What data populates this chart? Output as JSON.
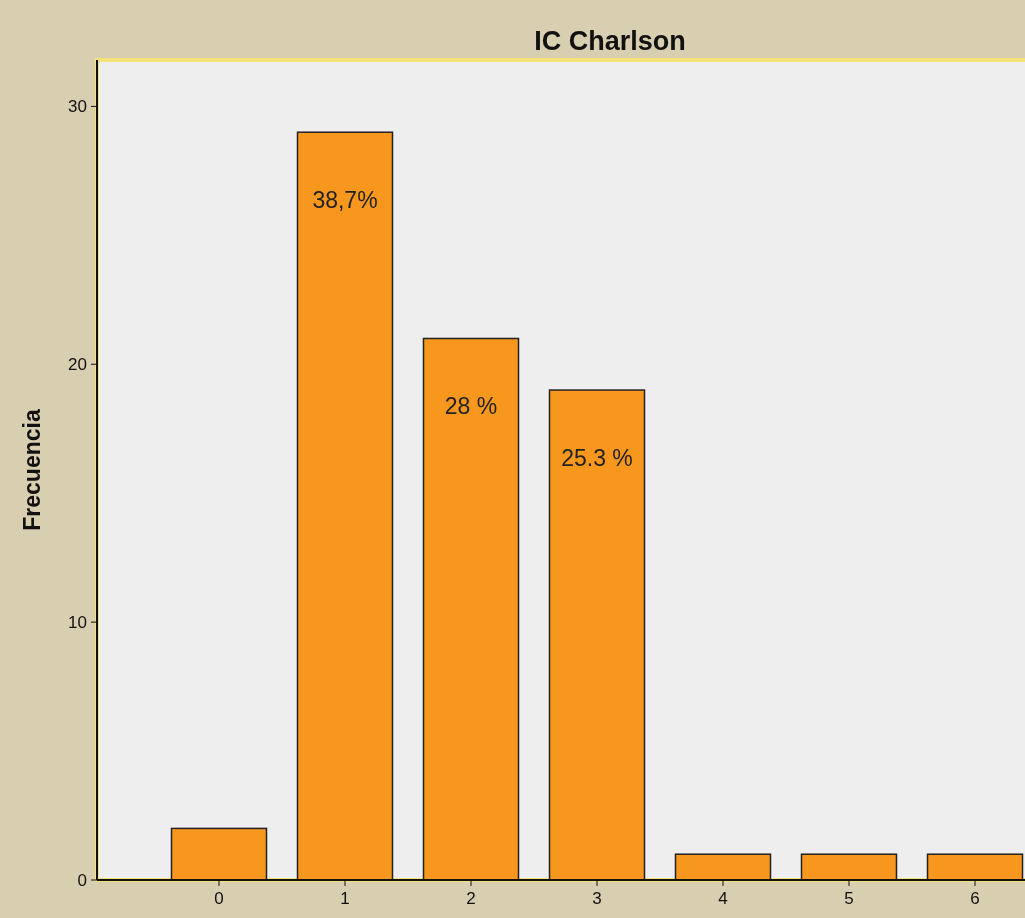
{
  "chart_data": {
    "type": "bar",
    "title": "IC Charlson",
    "ylabel": "Frecuencia",
    "categories": [
      "0",
      "1",
      "2",
      "3",
      "4",
      "5",
      "6"
    ],
    "values": [
      2,
      29,
      21,
      19,
      1,
      1,
      1
    ],
    "annotations": [
      {
        "text": "38,7%",
        "x": "1",
        "y": 29
      },
      {
        "text": "28 %",
        "x": "2",
        "y": 21
      },
      {
        "text": "25.3 %",
        "x": "3",
        "y": 19
      }
    ],
    "color": "#f7971d",
    "ylim": [
      0,
      31.8
    ],
    "yticks": [
      0,
      10,
      20,
      30
    ],
    "grid": false
  }
}
